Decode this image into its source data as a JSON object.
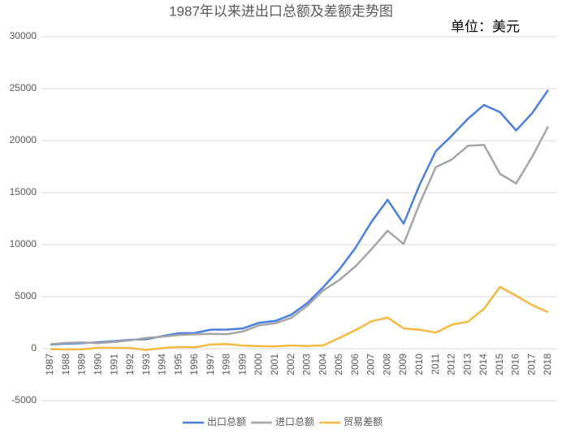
{
  "chart_data": {
    "type": "line",
    "title": "1987年以来进出口总额及差额走势图",
    "annotation": "单位：美元",
    "categories": [
      "1987",
      "1988",
      "1989",
      "1990",
      "1991",
      "1992",
      "1993",
      "1994",
      "1995",
      "1996",
      "1997",
      "1998",
      "1999",
      "2000",
      "2001",
      "2002",
      "2003",
      "2004",
      "2005",
      "2006",
      "2007",
      "2008",
      "2009",
      "2010",
      "2011",
      "2012",
      "2013",
      "2014",
      "2015",
      "2016",
      "2017",
      "2018"
    ],
    "series": [
      {
        "name": "出口总额",
        "color": "#4a7fe0",
        "values": [
          394,
          475,
          525,
          621,
          719,
          849,
          917,
          1210,
          1488,
          1511,
          1828,
          1837,
          1949,
          2492,
          2661,
          3256,
          4382,
          5933,
          7620,
          9689,
          12200,
          14307,
          12016,
          15778,
          18984,
          20487,
          22090,
          23423,
          22735,
          20976,
          22635,
          24867
        ]
      },
      {
        "name": "进口总额",
        "color": "#a5a5a5",
        "values": [
          432,
          553,
          591,
          534,
          638,
          806,
          1040,
          1156,
          1321,
          1388,
          1424,
          1402,
          1657,
          2251,
          2436,
          2952,
          4128,
          5612,
          6600,
          7915,
          9561,
          11326,
          10059,
          13962,
          17435,
          18184,
          19500,
          19592,
          16796,
          15879,
          18438,
          21357
        ]
      },
      {
        "name": "贸易差额",
        "color": "#f5b942",
        "values": [
          -38,
          -78,
          -66,
          87,
          81,
          43,
          -122,
          54,
          167,
          122,
          404,
          435,
          292,
          241,
          225,
          304,
          254,
          321,
          1020,
          1775,
          2639,
          2981,
          1957,
          1815,
          1549,
          2303,
          2590,
          3830,
          5939,
          5097,
          4197,
          3509
        ]
      }
    ],
    "ylim": [
      -5000,
      30000
    ],
    "yticks": [
      -5000,
      0,
      5000,
      10000,
      15000,
      20000,
      25000,
      30000
    ],
    "grid": true,
    "legend": "bottom"
  }
}
